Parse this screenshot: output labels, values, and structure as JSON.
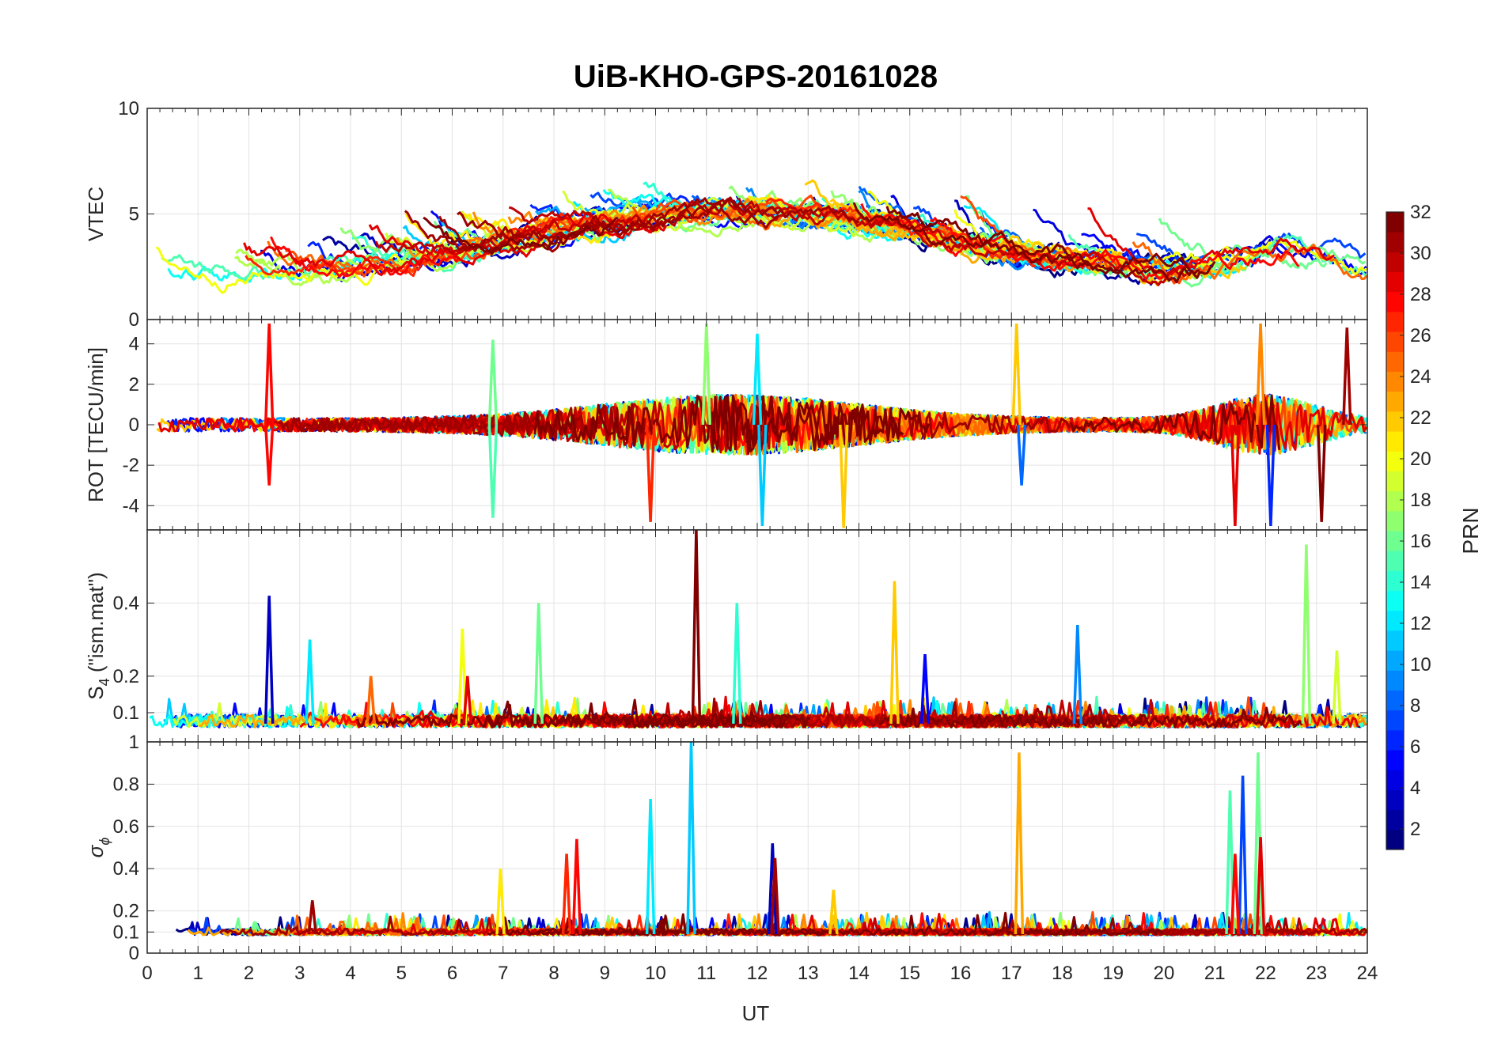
{
  "chart_data": {
    "type": "line",
    "title": "UiB-KHO-GPS-20161028",
    "xlabel": "UT",
    "xlim": [
      0,
      24
    ],
    "xticks": [
      "0",
      "1",
      "2",
      "3",
      "4",
      "5",
      "6",
      "7",
      "8",
      "9",
      "10",
      "11",
      "12",
      "13",
      "14",
      "15",
      "16",
      "17",
      "18",
      "19",
      "20",
      "21",
      "22",
      "23",
      "24"
    ],
    "grid": true,
    "panels": [
      {
        "id": "vtec",
        "ylabel": "VTEC",
        "ylim": [
          0,
          10
        ],
        "yticks": [
          0,
          5,
          10
        ],
        "ytick_labels": [
          "0",
          "5",
          "10"
        ],
        "kind": "tec",
        "spikes": []
      },
      {
        "id": "rot",
        "ylabel": "ROT [TECU/min]",
        "ylim": [
          -5.2,
          5.2
        ],
        "yticks": [
          -4,
          -2,
          0,
          2,
          4
        ],
        "ytick_labels": [
          "-4",
          "-2",
          "0",
          "2",
          "4"
        ],
        "kind": "rot",
        "spikes": [
          {
            "x": 2.4,
            "v": 5.0,
            "prn": 28
          },
          {
            "x": 2.4,
            "v": -3.0,
            "prn": 28
          },
          {
            "x": 6.8,
            "v": 4.2,
            "prn": 16
          },
          {
            "x": 6.8,
            "v": -4.6,
            "prn": 15
          },
          {
            "x": 9.9,
            "v": -4.8,
            "prn": 27
          },
          {
            "x": 11.0,
            "v": 5.0,
            "prn": 17
          },
          {
            "x": 12.0,
            "v": 4.5,
            "prn": 12
          },
          {
            "x": 12.1,
            "v": -5.0,
            "prn": 11
          },
          {
            "x": 13.7,
            "v": -5.1,
            "prn": 22
          },
          {
            "x": 17.1,
            "v": 5.0,
            "prn": 22
          },
          {
            "x": 17.2,
            "v": -3.0,
            "prn": 8
          },
          {
            "x": 21.4,
            "v": -5.0,
            "prn": 29
          },
          {
            "x": 21.9,
            "v": 5.0,
            "prn": 24
          },
          {
            "x": 22.1,
            "v": -5.0,
            "prn": 6
          },
          {
            "x": 23.6,
            "v": 4.8,
            "prn": 31
          },
          {
            "x": 23.1,
            "v": -4.8,
            "prn": 32
          }
        ]
      },
      {
        "id": "s4",
        "ylabel": "S4 (\"ism.mat\")",
        "ylabel_main": "S",
        "ylabel_sub": "4",
        "ylabel_rest": " (\"ism.mat\")",
        "ylim": [
          0.02,
          0.6
        ],
        "yticks": [
          0.1,
          0.2,
          0.4
        ],
        "ytick_labels": [
          "0.1",
          "0.2",
          "0.4"
        ],
        "kind": "s4",
        "spikes": [
          {
            "x": 2.4,
            "v": 0.42,
            "prn": 3
          },
          {
            "x": 3.2,
            "v": 0.3,
            "prn": 12
          },
          {
            "x": 4.4,
            "v": 0.2,
            "prn": 25
          },
          {
            "x": 6.2,
            "v": 0.33,
            "prn": 20
          },
          {
            "x": 6.3,
            "v": 0.2,
            "prn": 29
          },
          {
            "x": 7.7,
            "v": 0.4,
            "prn": 16
          },
          {
            "x": 10.8,
            "v": 0.6,
            "prn": 32
          },
          {
            "x": 11.6,
            "v": 0.4,
            "prn": 14
          },
          {
            "x": 14.7,
            "v": 0.46,
            "prn": 22
          },
          {
            "x": 15.3,
            "v": 0.26,
            "prn": 5
          },
          {
            "x": 18.3,
            "v": 0.34,
            "prn": 9
          },
          {
            "x": 22.8,
            "v": 0.56,
            "prn": 17
          },
          {
            "x": 23.4,
            "v": 0.27,
            "prn": 19
          }
        ]
      },
      {
        "id": "sigma",
        "ylabel": "σϕ",
        "ylabel_main": "σ",
        "ylabel_sub": "ϕ",
        "ylim": [
          0,
          1
        ],
        "yticks": [
          0,
          0.1,
          0.2,
          0.4,
          0.6,
          0.8,
          1
        ],
        "ytick_labels": [
          "0",
          "0.1",
          "0.2",
          "0.4",
          "0.6",
          "0.8",
          "1"
        ],
        "kind": "sigma",
        "spikes": [
          {
            "x": 3.25,
            "v": 0.25,
            "prn": 31
          },
          {
            "x": 6.95,
            "v": 0.4,
            "prn": 21
          },
          {
            "x": 8.25,
            "v": 0.47,
            "prn": 27
          },
          {
            "x": 8.45,
            "v": 0.54,
            "prn": 28
          },
          {
            "x": 9.9,
            "v": 0.73,
            "prn": 12
          },
          {
            "x": 10.7,
            "v": 1.0,
            "prn": 11
          },
          {
            "x": 12.3,
            "v": 0.52,
            "prn": 3
          },
          {
            "x": 12.35,
            "v": 0.45,
            "prn": 31
          },
          {
            "x": 13.5,
            "v": 0.3,
            "prn": 22
          },
          {
            "x": 17.15,
            "v": 0.95,
            "prn": 23
          },
          {
            "x": 21.3,
            "v": 0.77,
            "prn": 15
          },
          {
            "x": 21.55,
            "v": 0.84,
            "prn": 7
          },
          {
            "x": 21.85,
            "v": 0.95,
            "prn": 16
          },
          {
            "x": 21.4,
            "v": 0.47,
            "prn": 28
          },
          {
            "x": 21.9,
            "v": 0.55,
            "prn": 29
          }
        ]
      }
    ],
    "colorbar": {
      "label": "PRN",
      "colormap": "jet",
      "range": [
        1,
        32
      ],
      "ticks": [
        "2",
        "4",
        "6",
        "8",
        "10",
        "12",
        "14",
        "16",
        "18",
        "20",
        "22",
        "24",
        "26",
        "28",
        "30",
        "32"
      ]
    }
  }
}
